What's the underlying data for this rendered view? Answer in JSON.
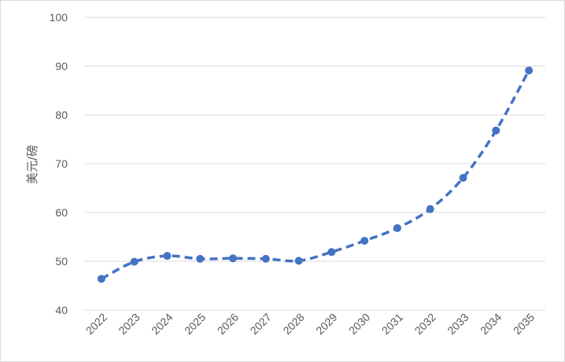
{
  "chart_data": {
    "type": "line",
    "title": "",
    "xlabel": "",
    "ylabel": "美元/磅",
    "ylim": [
      40,
      100
    ],
    "yticks": [
      40,
      50,
      60,
      70,
      80,
      90,
      100
    ],
    "grid": true,
    "categories": [
      "2022",
      "2023",
      "2024",
      "2025",
      "2026",
      "2027",
      "2028",
      "2029",
      "2030",
      "2031",
      "2032",
      "2033",
      "2034",
      "2035"
    ],
    "series": [
      {
        "values": [
          46.4,
          49.9,
          51.1,
          50.5,
          50.6,
          50.5,
          50.1,
          51.9,
          54.2,
          56.8,
          60.7,
          67.1,
          76.8,
          89.1
        ],
        "color": "#4472c4",
        "line_style": "dashed",
        "smooth": true,
        "markers": true
      }
    ]
  }
}
